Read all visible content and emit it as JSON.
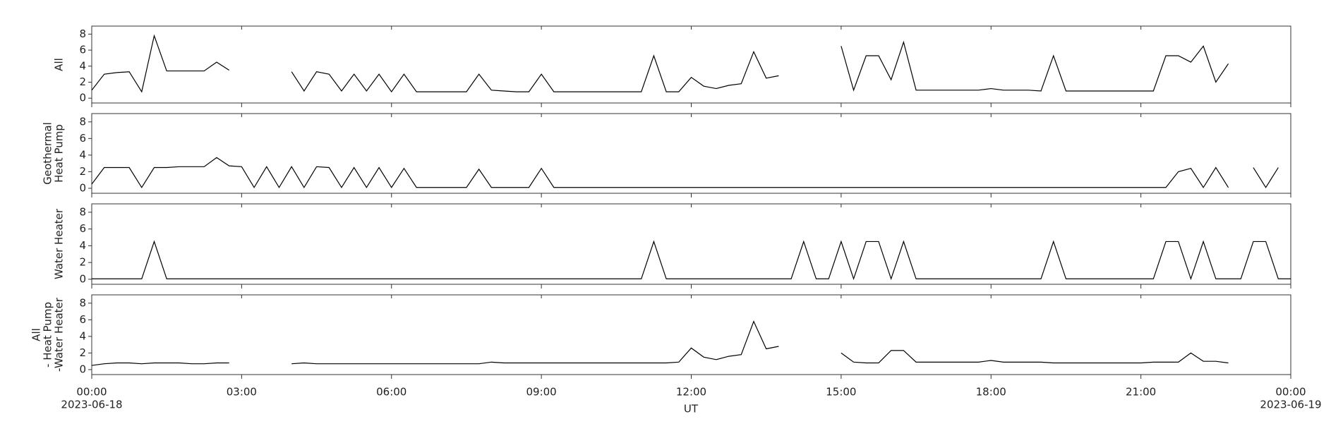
{
  "chart_data": {
    "type": "line",
    "xlabel": "UT",
    "x": [
      0,
      0.25,
      0.5,
      0.75,
      1,
      1.25,
      1.5,
      1.75,
      2,
      2.25,
      2.5,
      2.75,
      3,
      3.25,
      3.5,
      3.75,
      4,
      4.25,
      4.5,
      4.75,
      5,
      5.25,
      5.5,
      5.75,
      6,
      6.25,
      6.5,
      6.75,
      7,
      7.25,
      7.5,
      7.75,
      8,
      8.25,
      8.5,
      8.75,
      9,
      9.25,
      9.5,
      9.75,
      10,
      10.25,
      10.5,
      10.75,
      11,
      11.25,
      11.5,
      11.75,
      12,
      12.25,
      12.5,
      12.75,
      13,
      13.25,
      13.5,
      13.75,
      14,
      14.25,
      14.5,
      14.75,
      15,
      15.25,
      15.5,
      15.75,
      16,
      16.25,
      16.5,
      16.75,
      17,
      17.25,
      17.5,
      17.75,
      18,
      18.25,
      18.5,
      18.75,
      19,
      19.25,
      19.5,
      19.75,
      20,
      20.25,
      20.5,
      20.75,
      21,
      21.25,
      21.5,
      21.75,
      22,
      22.25,
      22.5,
      22.75,
      23,
      23.25,
      23.5,
      23.75,
      24
    ],
    "xlim": [
      0,
      24
    ],
    "xticks": [
      {
        "value": 0,
        "label": "00:00"
      },
      {
        "value": 3,
        "label": "03:00"
      },
      {
        "value": 6,
        "label": "06:00"
      },
      {
        "value": 9,
        "label": "09:00"
      },
      {
        "value": 12,
        "label": "12:00"
      },
      {
        "value": 15,
        "label": "15:00"
      },
      {
        "value": 18,
        "label": "18:00"
      },
      {
        "value": 21,
        "label": "21:00"
      },
      {
        "value": 24,
        "label": "00:00"
      }
    ],
    "date_labels": [
      {
        "value": 0,
        "label": "2023-06-18"
      },
      {
        "value": 24,
        "label": "2023-06-19"
      }
    ],
    "ylim": [
      -0.6,
      9
    ],
    "yticks": [
      0,
      2,
      4,
      6,
      8
    ],
    "series": [
      {
        "ylabel": [
          "All"
        ],
        "color": "#000000",
        "values": [
          1.0,
          3.0,
          3.2,
          3.3,
          0.8,
          7.8,
          3.4,
          3.4,
          3.4,
          3.4,
          4.5,
          3.5,
          null,
          null,
          null,
          null,
          3.3,
          0.9,
          3.3,
          3.0,
          0.9,
          3.0,
          0.9,
          3.0,
          0.8,
          3.0,
          0.8,
          0.8,
          0.8,
          0.8,
          0.8,
          3.0,
          1.0,
          0.9,
          0.8,
          0.8,
          3.0,
          0.8,
          0.8,
          0.8,
          0.8,
          0.8,
          0.8,
          0.8,
          0.8,
          5.3,
          0.8,
          0.8,
          2.6,
          1.5,
          1.2,
          1.6,
          1.8,
          5.8,
          2.5,
          2.8,
          null,
          null,
          null,
          null,
          6.5,
          1.0,
          5.3,
          5.3,
          2.3,
          7.0,
          1.0,
          1.0,
          1.0,
          1.0,
          1.0,
          1.0,
          1.2,
          1.0,
          1.0,
          1.0,
          0.9,
          5.3,
          0.9,
          0.9,
          0.9,
          0.9,
          0.9,
          0.9,
          0.9,
          0.9,
          5.3,
          5.3,
          4.5,
          6.5,
          2.0,
          4.3,
          null,
          null,
          null,
          null,
          null
        ]
      },
      {
        "ylabel": [
          "Geothermal",
          "Heat Pump"
        ],
        "color": "#000000",
        "values": [
          0.5,
          2.5,
          2.5,
          2.5,
          0.1,
          2.5,
          2.5,
          2.6,
          2.6,
          2.6,
          3.7,
          2.7,
          2.6,
          0.1,
          2.6,
          0.1,
          2.6,
          0.1,
          2.6,
          2.5,
          0.1,
          2.5,
          0.1,
          2.5,
          0.1,
          2.4,
          0.1,
          0.1,
          0.1,
          0.1,
          0.1,
          2.3,
          0.1,
          0.1,
          0.1,
          0.1,
          2.4,
          0.1,
          0.1,
          0.1,
          0.1,
          0.1,
          0.1,
          0.1,
          0.1,
          0.1,
          0.1,
          0.1,
          0.1,
          0.1,
          0.1,
          0.1,
          0.1,
          0.1,
          0.1,
          0.1,
          0.1,
          0.1,
          0.1,
          0.1,
          0.1,
          0.1,
          0.1,
          0.1,
          0.1,
          0.1,
          0.1,
          0.1,
          0.1,
          0.1,
          0.1,
          0.1,
          0.1,
          0.1,
          0.1,
          0.1,
          0.1,
          0.1,
          0.1,
          0.1,
          0.1,
          0.1,
          0.1,
          0.1,
          0.1,
          0.1,
          0.1,
          2.0,
          2.4,
          0.1,
          2.5,
          0.1,
          null,
          2.5,
          0.1,
          2.5,
          null
        ]
      },
      {
        "ylabel": [
          "Water Heater"
        ],
        "color": "#000000",
        "values": [
          0.05,
          0.05,
          0.05,
          0.05,
          0.05,
          4.5,
          0.05,
          0.05,
          0.05,
          0.05,
          0.05,
          0.05,
          0.05,
          0.05,
          0.05,
          0.05,
          0.05,
          0.05,
          0.05,
          0.05,
          0.05,
          0.05,
          0.05,
          0.05,
          0.05,
          0.05,
          0.05,
          0.05,
          0.05,
          0.05,
          0.05,
          0.05,
          0.05,
          0.05,
          0.05,
          0.05,
          0.05,
          0.05,
          0.05,
          0.05,
          0.05,
          0.05,
          0.05,
          0.05,
          0.05,
          4.5,
          0.05,
          0.05,
          0.05,
          0.05,
          0.05,
          0.05,
          0.05,
          0.05,
          0.05,
          0.05,
          0.05,
          4.5,
          0.05,
          0.05,
          4.5,
          0.05,
          4.5,
          4.5,
          0.05,
          4.5,
          0.05,
          0.05,
          0.05,
          0.05,
          0.05,
          0.05,
          0.05,
          0.05,
          0.05,
          0.05,
          0.05,
          4.5,
          0.05,
          0.05,
          0.05,
          0.05,
          0.05,
          0.05,
          0.05,
          0.05,
          4.5,
          4.5,
          0.05,
          4.5,
          0.05,
          0.05,
          0.05,
          4.5,
          4.5,
          0.05,
          0.05
        ]
      },
      {
        "ylabel": [
          "All",
          "- Heat Pump",
          "-Water Heater"
        ],
        "color": "#000000",
        "values": [
          0.5,
          0.7,
          0.8,
          0.8,
          0.7,
          0.8,
          0.8,
          0.8,
          0.7,
          0.7,
          0.8,
          0.8,
          null,
          null,
          null,
          null,
          0.7,
          0.8,
          0.7,
          0.7,
          0.7,
          0.7,
          0.7,
          0.7,
          0.7,
          0.7,
          0.7,
          0.7,
          0.7,
          0.7,
          0.7,
          0.7,
          0.9,
          0.8,
          0.8,
          0.8,
          0.8,
          0.8,
          0.8,
          0.8,
          0.8,
          0.8,
          0.8,
          0.8,
          0.8,
          0.8,
          0.8,
          0.9,
          2.6,
          1.5,
          1.2,
          1.6,
          1.8,
          5.8,
          2.5,
          2.8,
          null,
          null,
          null,
          null,
          2.0,
          0.9,
          0.8,
          0.8,
          2.3,
          2.3,
          0.9,
          0.9,
          0.9,
          0.9,
          0.9,
          0.9,
          1.1,
          0.9,
          0.9,
          0.9,
          0.9,
          0.8,
          0.8,
          0.8,
          0.8,
          0.8,
          0.8,
          0.8,
          0.8,
          0.9,
          0.9,
          0.9,
          2.0,
          1.0,
          1.0,
          0.8,
          null,
          null,
          null,
          null,
          null
        ]
      }
    ]
  }
}
